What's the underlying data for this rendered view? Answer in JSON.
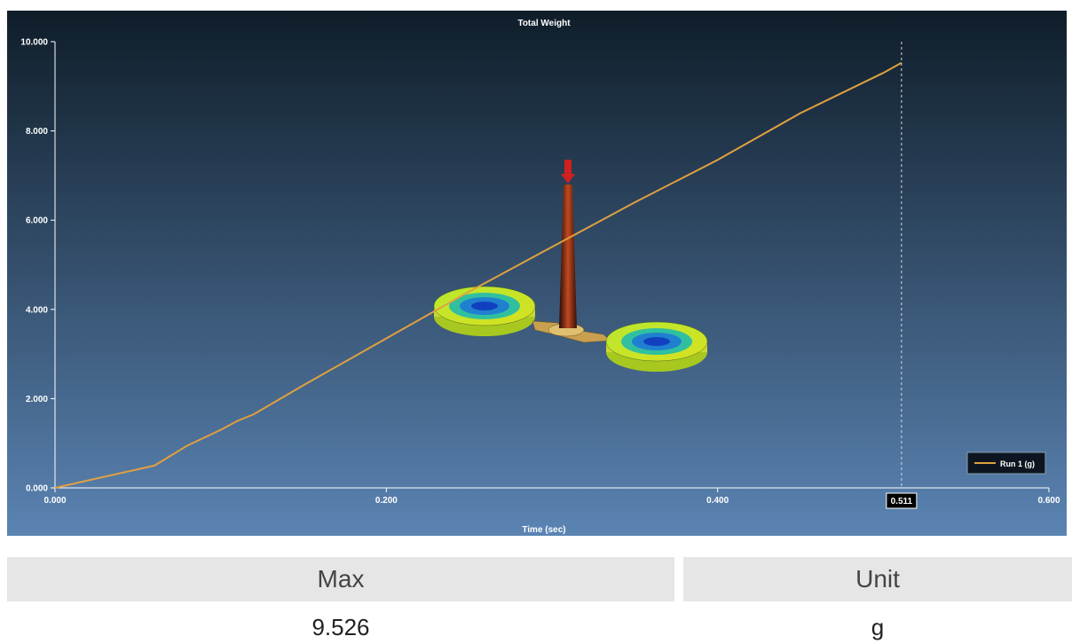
{
  "chart_data": {
    "type": "line",
    "title": "Total Weight",
    "xlabel": "Time (sec)",
    "ylabel": "",
    "xlim": [
      0,
      0.6
    ],
    "ylim": [
      0,
      10
    ],
    "x_ticks": [
      "0.000",
      "0.200",
      "0.400",
      "0.600"
    ],
    "y_ticks": [
      "0.000",
      "2.000",
      "4.000",
      "6.000",
      "8.000",
      "10.000"
    ],
    "cursor_x": 0.511,
    "cursor_label": "0.511",
    "grid": false,
    "legend_position": "bottom-right",
    "series": [
      {
        "name": "Run 1 (g)",
        "color": "#e0a040",
        "x": [
          0.0,
          0.03,
          0.06,
          0.08,
          0.1,
          0.11,
          0.12,
          0.15,
          0.2,
          0.25,
          0.3,
          0.35,
          0.4,
          0.45,
          0.5,
          0.511
        ],
        "y": [
          0.0,
          0.25,
          0.5,
          0.95,
          1.3,
          1.5,
          1.65,
          2.3,
          3.35,
          4.4,
          5.4,
          6.4,
          7.35,
          8.4,
          9.3,
          9.526
        ]
      }
    ]
  },
  "summary": {
    "max_label": "Max",
    "unit_label": "Unit",
    "max_value": "9.526",
    "unit_value": "g"
  },
  "colors": {
    "bg_top": "#0f1d29",
    "bg_bottom": "#5b84b3",
    "series": "#e0a040"
  },
  "overlay": {
    "icon": "mold-model-3d-icon"
  }
}
